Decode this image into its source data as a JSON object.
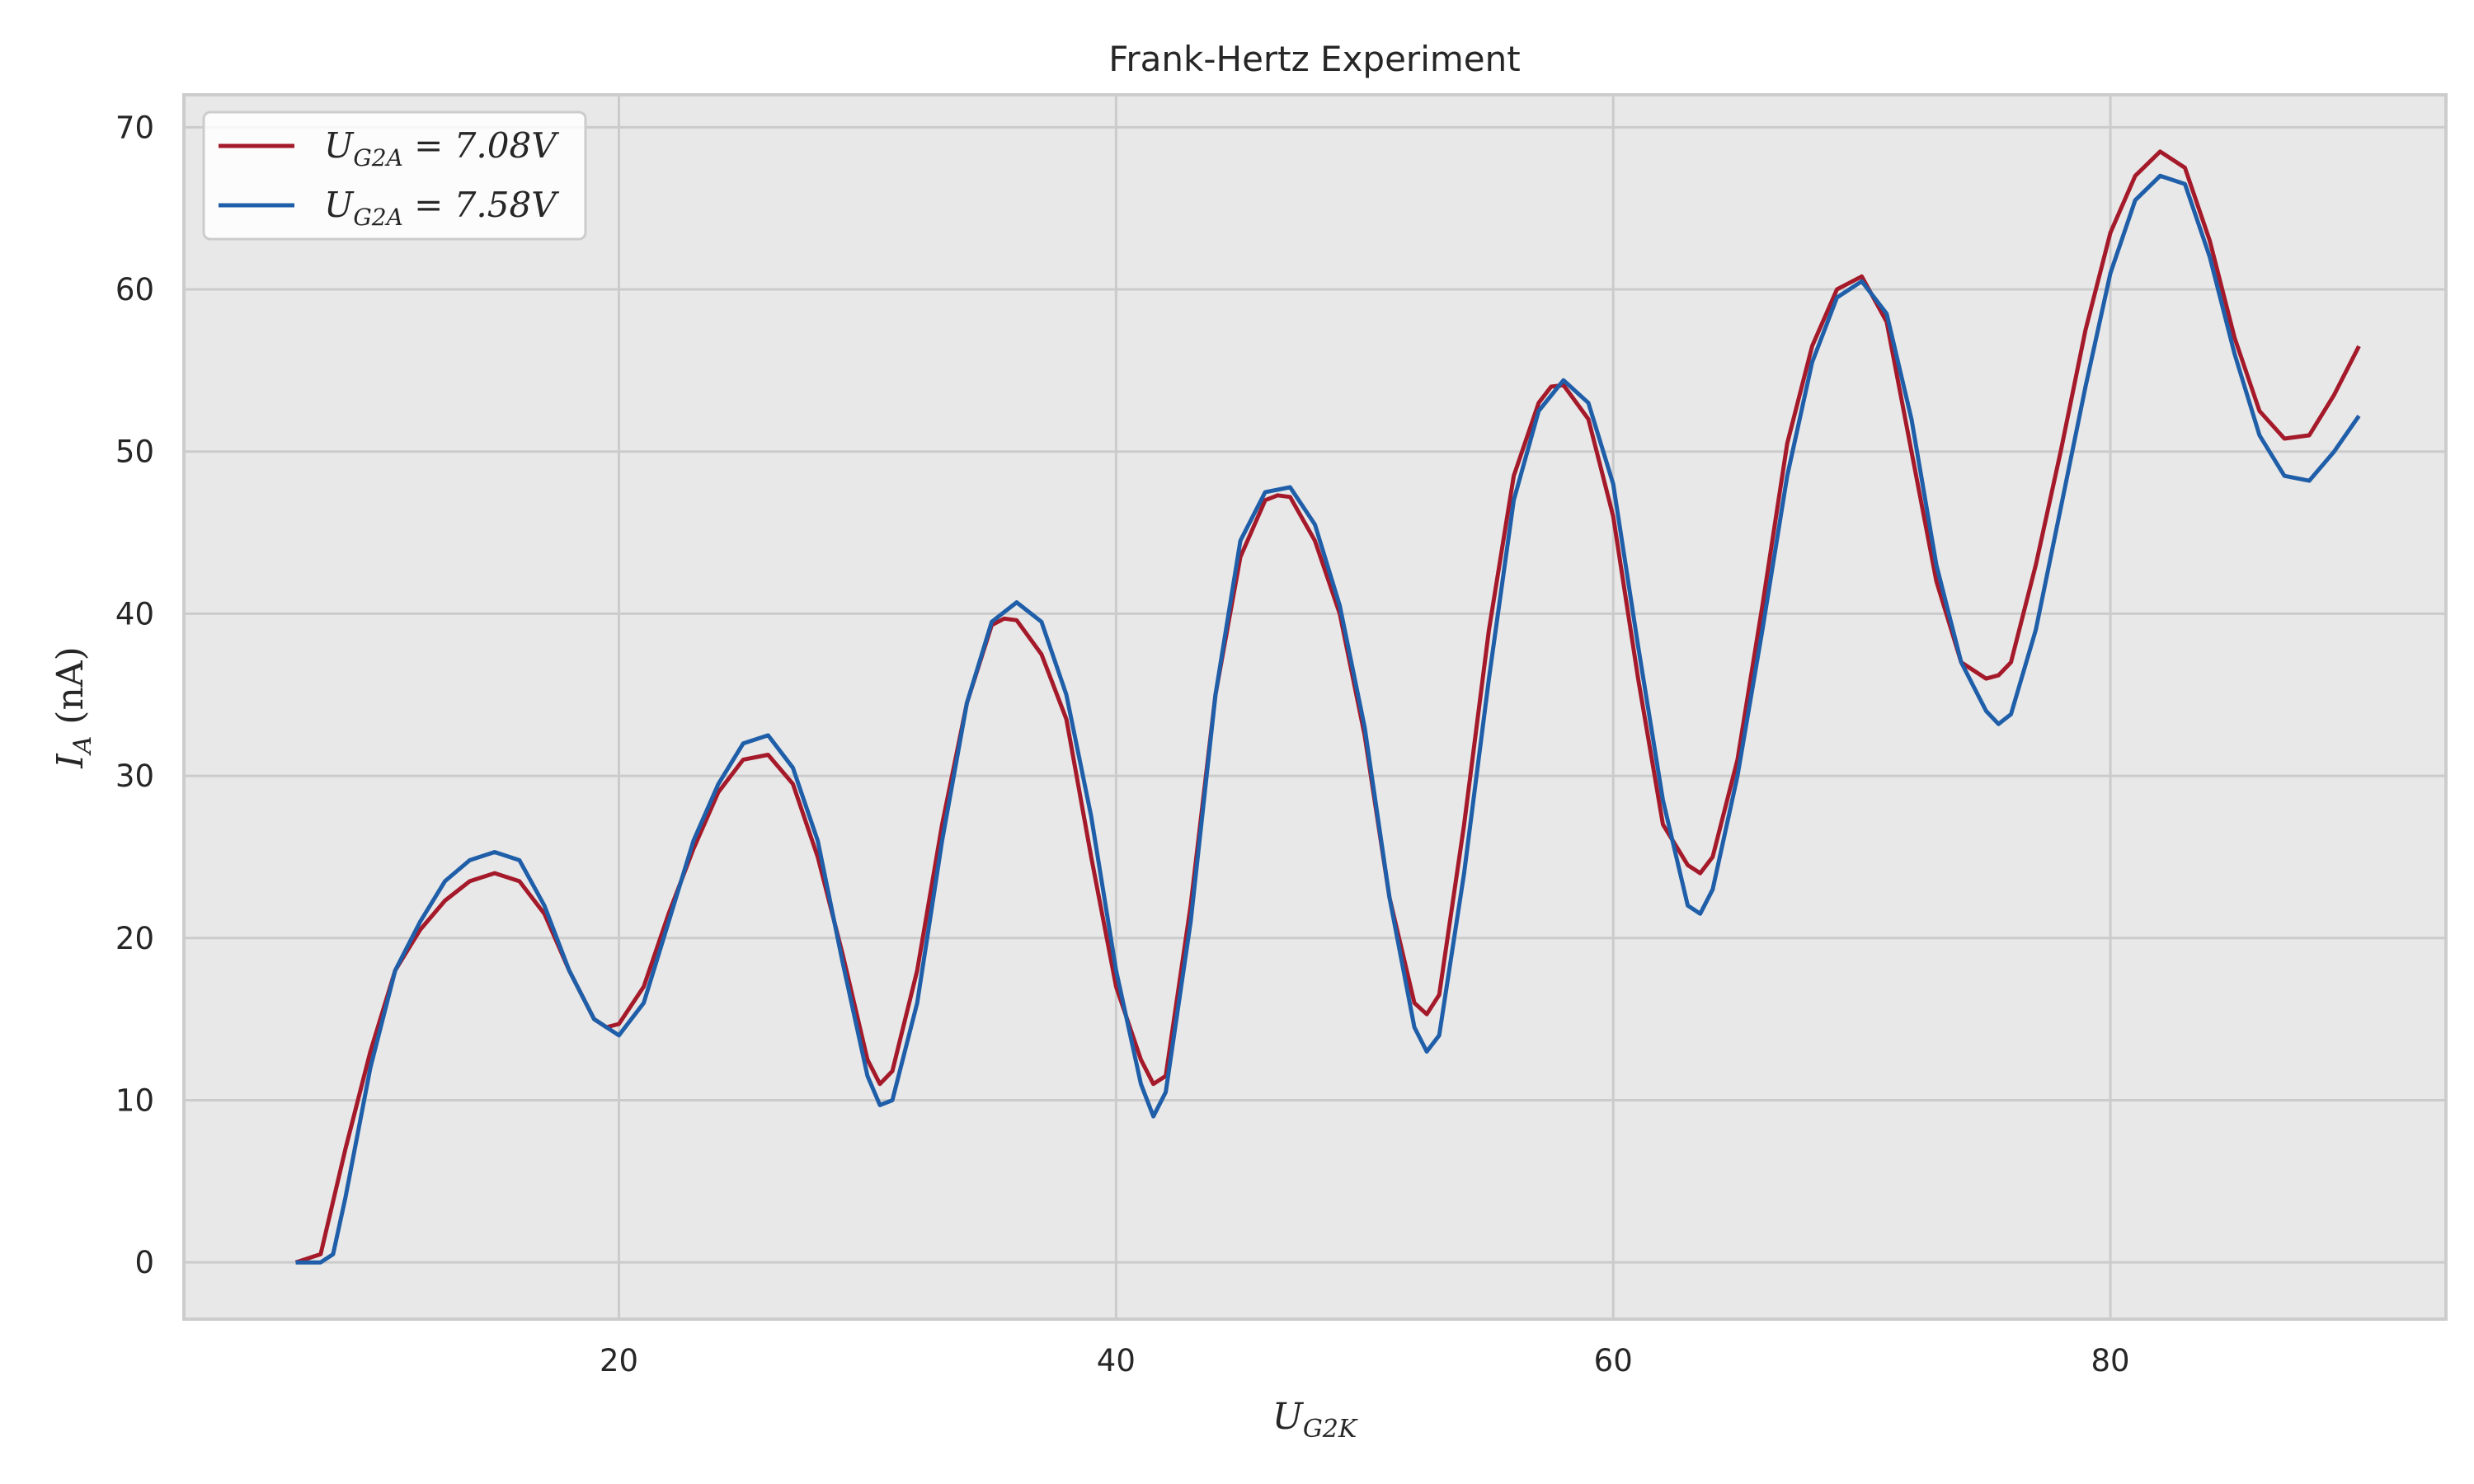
{
  "chart_data": {
    "type": "line",
    "title": "Frank-Hertz Experiment",
    "xlabel": "U_G2K",
    "ylabel": "I_A (nA)",
    "xlim": [
      2.5,
      93.5
    ],
    "ylim": [
      -3.5,
      72
    ],
    "xticks": [
      20,
      40,
      60,
      80
    ],
    "yticks": [
      0,
      10,
      20,
      30,
      40,
      50,
      60,
      70
    ],
    "grid": true,
    "legend_position": "top-left",
    "background": "#e8e8e8",
    "series": [
      {
        "name": "U_G2A = 7.08V",
        "color": "#a51a2a",
        "x": [
          7.0,
          8.0,
          9.0,
          10.0,
          11.0,
          12.0,
          13.0,
          14.0,
          15.0,
          16.0,
          17.0,
          18.0,
          19.0,
          19.5,
          20.0,
          21.0,
          22.0,
          23.0,
          24.0,
          25.0,
          26.0,
          27.0,
          28.0,
          29.0,
          30.0,
          30.5,
          31.0,
          32.0,
          33.0,
          34.0,
          35.0,
          35.5,
          36.0,
          37.0,
          38.0,
          39.0,
          40.0,
          41.0,
          41.5,
          42.0,
          43.0,
          44.0,
          45.0,
          46.0,
          46.5,
          47.0,
          48.0,
          49.0,
          50.0,
          51.0,
          52.0,
          52.5,
          53.0,
          54.0,
          55.0,
          56.0,
          57.0,
          57.5,
          58.0,
          59.0,
          60.0,
          61.0,
          62.0,
          63.0,
          63.5,
          64.0,
          65.0,
          66.0,
          67.0,
          68.0,
          69.0,
          70.0,
          71.0,
          72.0,
          73.0,
          74.0,
          75.0,
          75.5,
          76.0,
          77.0,
          78.0,
          79.0,
          80.0,
          81.0,
          82.0,
          83.0,
          84.0,
          85.0,
          86.0,
          87.0,
          88.0,
          89.0,
          90.0
        ],
        "values": [
          0.0,
          0.5,
          7.0,
          13.0,
          18.0,
          20.5,
          22.3,
          23.5,
          24.0,
          23.5,
          21.5,
          18.0,
          15.0,
          14.5,
          14.7,
          17.0,
          21.5,
          25.5,
          29.0,
          31.0,
          31.3,
          29.5,
          25.0,
          19.0,
          12.5,
          11.0,
          11.8,
          18.0,
          27.0,
          34.5,
          39.3,
          39.7,
          39.6,
          37.5,
          33.5,
          25.0,
          17.0,
          12.5,
          11.0,
          11.5,
          22.0,
          35.0,
          43.5,
          47.0,
          47.3,
          47.2,
          44.5,
          40.0,
          32.5,
          22.5,
          16.0,
          15.3,
          16.5,
          27.0,
          39.0,
          48.5,
          53.0,
          54.0,
          54.1,
          52.0,
          46.0,
          36.0,
          27.0,
          24.5,
          24.0,
          25.0,
          31.0,
          40.5,
          50.5,
          56.5,
          60.0,
          60.8,
          58.0,
          50.0,
          42.0,
          37.0,
          36.0,
          36.2,
          37.0,
          43.0,
          50.0,
          57.5,
          63.5,
          67.0,
          68.5,
          67.5,
          63.0,
          57.0,
          52.5,
          50.8,
          51.0,
          53.5,
          56.5
        ]
      },
      {
        "name": "U_G2A = 7.58V",
        "color": "#1f5ea8",
        "x": [
          7.0,
          8.0,
          8.5,
          9.0,
          10.0,
          11.0,
          12.0,
          13.0,
          14.0,
          15.0,
          16.0,
          17.0,
          18.0,
          19.0,
          20.0,
          21.0,
          22.0,
          23.0,
          24.0,
          25.0,
          26.0,
          27.0,
          28.0,
          29.0,
          30.0,
          30.5,
          31.0,
          32.0,
          33.0,
          34.0,
          35.0,
          36.0,
          37.0,
          38.0,
          39.0,
          40.0,
          41.0,
          41.5,
          42.0,
          43.0,
          44.0,
          45.0,
          46.0,
          47.0,
          48.0,
          49.0,
          50.0,
          51.0,
          52.0,
          52.5,
          53.0,
          54.0,
          55.0,
          56.0,
          57.0,
          58.0,
          59.0,
          60.0,
          61.0,
          62.0,
          63.0,
          63.5,
          64.0,
          65.0,
          66.0,
          67.0,
          68.0,
          69.0,
          70.0,
          71.0,
          72.0,
          73.0,
          74.0,
          75.0,
          75.5,
          76.0,
          77.0,
          78.0,
          79.0,
          80.0,
          81.0,
          82.0,
          83.0,
          84.0,
          85.0,
          86.0,
          87.0,
          88.0,
          89.0,
          90.0
        ],
        "values": [
          0.0,
          0.0,
          0.5,
          4.0,
          12.0,
          18.0,
          21.0,
          23.5,
          24.8,
          25.3,
          24.8,
          22.0,
          18.0,
          15.0,
          14.0,
          16.0,
          21.0,
          26.0,
          29.5,
          32.0,
          32.5,
          30.5,
          26.0,
          18.5,
          11.5,
          9.7,
          10.0,
          16.0,
          26.0,
          34.5,
          39.5,
          40.7,
          39.5,
          35.0,
          27.5,
          18.0,
          11.0,
          9.0,
          10.5,
          21.0,
          35.0,
          44.5,
          47.5,
          47.8,
          45.5,
          40.5,
          33.0,
          22.5,
          14.5,
          13.0,
          14.0,
          24.0,
          36.0,
          47.0,
          52.5,
          54.4,
          53.0,
          48.0,
          38.0,
          28.5,
          22.0,
          21.5,
          23.0,
          30.0,
          39.0,
          48.5,
          55.5,
          59.5,
          60.5,
          58.5,
          52.0,
          43.0,
          37.0,
          34.0,
          33.2,
          33.8,
          39.0,
          46.5,
          54.0,
          61.0,
          65.5,
          67.0,
          66.5,
          62.0,
          56.0,
          51.0,
          48.5,
          48.2,
          50.0,
          52.2
        ]
      }
    ]
  },
  "legend": {
    "items": [
      {
        "base": "U",
        "sub": "G2A",
        "rest": " = 7.08V",
        "color": "#a51a2a"
      },
      {
        "base": "U",
        "sub": "G2A",
        "rest": " = 7.58V",
        "color": "#1f5ea8"
      }
    ]
  },
  "labels": {
    "x_base": "U",
    "x_sub": "G2K",
    "y_base": "I",
    "y_sub": "A",
    "y_rest": " (nA)"
  }
}
